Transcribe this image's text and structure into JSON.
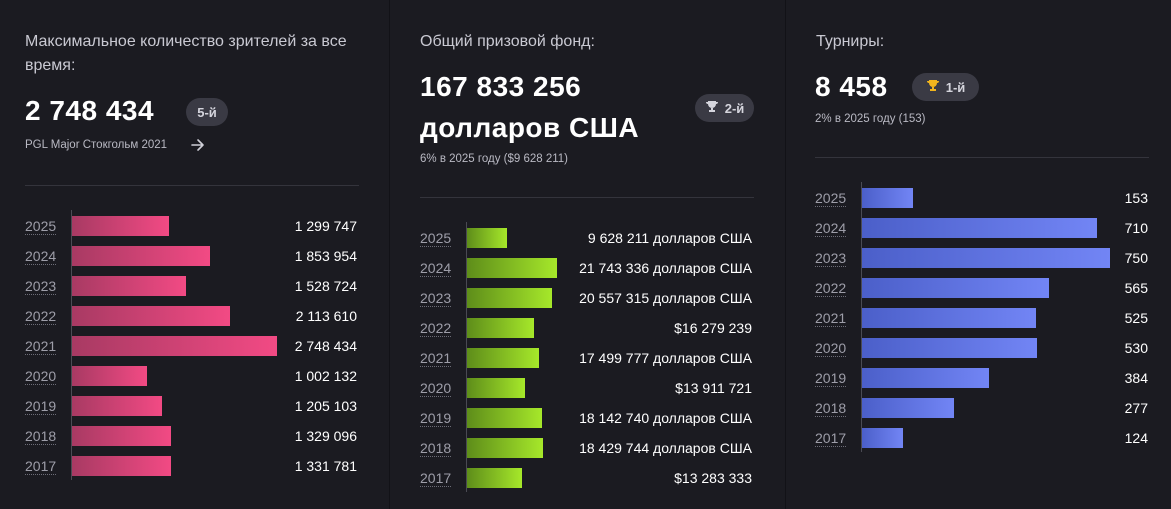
{
  "viewers": {
    "label": "Максимальное количество зрителей за все время:",
    "value": "2 748 434",
    "rank": "5-й",
    "source": "PGL Major Стокгольм 2021",
    "arrow_icon": "arrow-right-icon",
    "bar_color_start": "#a83a63",
    "bar_color_end": "#f24a84"
  },
  "prize": {
    "label": "Общий призовой фонд:",
    "value_line1": "167 833 256",
    "value_line2": "долларов США",
    "rank": "2-й",
    "rank_icon": "trophy-icon",
    "subnote": "6% в 2025 году ($9 628 211)",
    "bar_color_start": "#5e8d1a",
    "bar_color_end": "#a6e82a"
  },
  "tournaments": {
    "label": "Турниры:",
    "value": "8 458",
    "rank": "1-й",
    "rank_icon": "trophy-icon",
    "subnote": "2% в 2025 году (153)",
    "bar_color_start": "#4b5fc9",
    "bar_color_end": "#7285f5"
  },
  "chart_data": [
    {
      "type": "bar",
      "orientation": "horizontal",
      "categories": [
        "2025",
        "2024",
        "2023",
        "2022",
        "2021",
        "2020",
        "2019",
        "2018",
        "2017"
      ],
      "values": [
        1299747,
        1853954,
        1528724,
        2113610,
        2748434,
        1002132,
        1205103,
        1329096,
        1331781
      ],
      "value_labels": [
        "1 299 747",
        "1 853 954",
        "1 528 724",
        "2 113 610",
        "2 748 434",
        "1 002 132",
        "1 205 103",
        "1 329 096",
        "1 331 781"
      ]
    },
    {
      "type": "bar",
      "orientation": "horizontal",
      "categories": [
        "2025",
        "2024",
        "2023",
        "2022",
        "2021",
        "2020",
        "2019",
        "2018",
        "2017"
      ],
      "values": [
        9628211,
        21743336,
        20557315,
        16279239,
        17499777,
        13911721,
        18142740,
        18429744,
        13283333
      ],
      "value_labels": [
        "9 628 211 долларов США",
        "21 743 336 долларов США",
        "20 557 315 долларов США",
        "$16 279 239",
        "17 499 777 долларов США",
        "$13 911 721",
        "18 142 740 долларов США",
        "18 429 744 долларов США",
        "$13 283 333"
      ]
    },
    {
      "type": "bar",
      "orientation": "horizontal",
      "categories": [
        "2025",
        "2024",
        "2023",
        "2022",
        "2021",
        "2020",
        "2019",
        "2018",
        "2017"
      ],
      "values": [
        153,
        710,
        750,
        565,
        525,
        530,
        384,
        277,
        124
      ],
      "value_labels": [
        "153",
        "710",
        "750",
        "565",
        "525",
        "530",
        "384",
        "277",
        "124"
      ]
    }
  ]
}
